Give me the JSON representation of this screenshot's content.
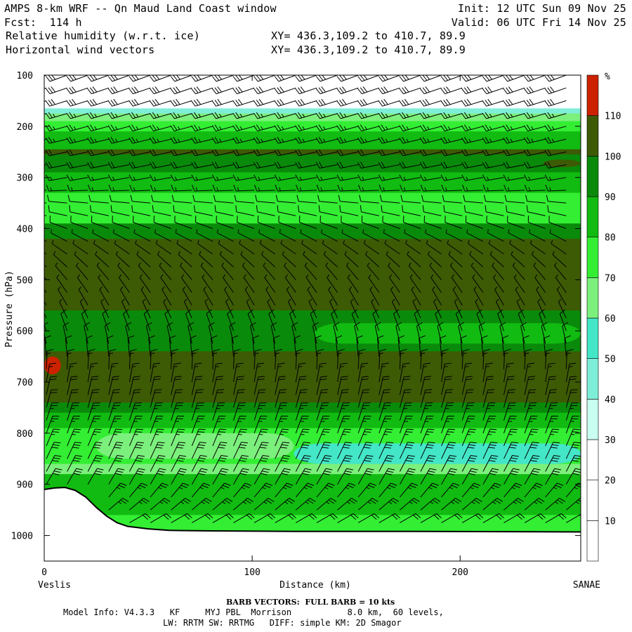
{
  "header": {
    "model_title": "AMPS 8-km WRF -- Qn Maud Land Coast window",
    "init": "Init: 12 UTC Sun 09 Nov 25",
    "forecast": "Fcst:  114 h",
    "valid": "Valid: 06 UTC Fri 14 Nov 25",
    "field1": "Relative humidity (w.r.t. ice)",
    "field1_xy": "XY= 436.3,109.2 to 410.7, 89.9",
    "field2": "Horizontal wind vectors",
    "field2_xy": "XY= 436.3,109.2 to 410.7, 89.9"
  },
  "footer": {
    "barb_note": "BARB VECTORS:  FULL BARB = 10 kts",
    "model_info_1": "Model Info: V4.3.3   KF     MYJ PBL  Morrison           8.0 km,  60 levels,",
    "model_info_2": "LW: RRTM SW: RRTMG   DIFF: simple KM: 2D Smagor"
  },
  "chart_data": {
    "type": "heatmap",
    "title": "Relative humidity (w.r.t. ice)",
    "xlabel": "Distance (km)",
    "ylabel": "Pressure (hPa)",
    "xlim": [
      0,
      258
    ],
    "ylim": [
      1050,
      100
    ],
    "x_ticks": [
      0,
      100,
      200
    ],
    "y_ticks": [
      100,
      200,
      300,
      400,
      500,
      600,
      700,
      800,
      900,
      1000
    ],
    "x_end_labels": {
      "left": "Veslis",
      "right": "SANAE"
    },
    "colorbar": {
      "unit": "%",
      "levels": [
        10,
        20,
        30,
        40,
        50,
        60,
        70,
        80,
        90,
        100,
        110
      ],
      "colors": [
        "#ffffff",
        "#ffffff",
        "#ffffff",
        "#c8fff0",
        "#7feed8",
        "#44e6c8",
        "#7cf07c",
        "#33ee33",
        "#11bb11",
        "#0a8a0a",
        "#3d5a05",
        "#cc2200"
      ]
    },
    "terrain_surface_hPa": [
      [
        0,
        910
      ],
      [
        5,
        907
      ],
      [
        10,
        906
      ],
      [
        15,
        912
      ],
      [
        20,
        925
      ],
      [
        25,
        945
      ],
      [
        30,
        962
      ],
      [
        35,
        975
      ],
      [
        40,
        982
      ],
      [
        50,
        987
      ],
      [
        60,
        990
      ],
      [
        80,
        991
      ],
      [
        120,
        992
      ],
      [
        180,
        992
      ],
      [
        258,
        993
      ]
    ],
    "rh_bands": [
      {
        "p_top": 100,
        "p_bottom": 165,
        "rh_pct": 20
      },
      {
        "p_top": 165,
        "p_bottom": 175,
        "rh_pct": 45
      },
      {
        "p_top": 175,
        "p_bottom": 190,
        "rh_pct": 65
      },
      {
        "p_top": 190,
        "p_bottom": 210,
        "rh_pct": 75
      },
      {
        "p_top": 210,
        "p_bottom": 245,
        "rh_pct": 85
      },
      {
        "p_top": 245,
        "p_bottom": 255,
        "rh_pct": 100
      },
      {
        "p_top": 255,
        "p_bottom": 290,
        "rh_pct": 95
      },
      {
        "p_top": 290,
        "p_bottom": 330,
        "rh_pct": 85
      },
      {
        "p_top": 330,
        "p_bottom": 390,
        "rh_pct": 75
      },
      {
        "p_top": 390,
        "p_bottom": 420,
        "rh_pct": 90
      },
      {
        "p_top": 420,
        "p_bottom": 560,
        "rh_pct": 105
      },
      {
        "p_top": 560,
        "p_bottom": 640,
        "rh_pct": 90
      },
      {
        "p_top": 640,
        "p_bottom": 740,
        "rh_pct": 105
      },
      {
        "p_top": 740,
        "p_bottom": 760,
        "rh_pct": 92
      },
      {
        "p_top": 760,
        "p_bottom": 790,
        "rh_pct": 80
      },
      {
        "p_top": 790,
        "p_bottom": 860,
        "rh_pct": 72
      },
      {
        "p_top": 860,
        "p_bottom": 880,
        "rh_pct": 65
      },
      {
        "p_top": 880,
        "p_bottom": 920,
        "rh_pct": 80
      },
      {
        "p_top": 920,
        "p_bottom": 960,
        "rh_pct": 88
      },
      {
        "p_top": 960,
        "p_bottom": 995,
        "rh_pct": 78
      }
    ],
    "rh_features": [
      {
        "x0": 130,
        "x1": 258,
        "p_top": 585,
        "p_bottom": 625,
        "rh_pct": 80
      },
      {
        "x0": 0,
        "x1": 40,
        "p_top": 350,
        "p_bottom": 370,
        "rh_pct": 70
      },
      {
        "x0": 170,
        "x1": 258,
        "p_top": 345,
        "p_bottom": 375,
        "rh_pct": 72
      },
      {
        "x0": 120,
        "x1": 258,
        "p_top": 820,
        "p_bottom": 860,
        "rh_pct": 55
      },
      {
        "x0": 25,
        "x1": 120,
        "p_top": 800,
        "p_bottom": 850,
        "rh_pct": 60
      },
      {
        "x0": 0,
        "x1": 8,
        "p_top": 650,
        "p_bottom": 685,
        "rh_pct": 115
      },
      {
        "x0": 240,
        "x1": 258,
        "p_top": 265,
        "p_bottom": 280,
        "rh_pct": 105
      }
    ],
    "wind_barbs": {
      "x_km": [
        0,
        10,
        20,
        30,
        40,
        50,
        60,
        70,
        80,
        90,
        100,
        110,
        120,
        130,
        140,
        150,
        160,
        170,
        180,
        190,
        200,
        210,
        220,
        230,
        240,
        250
      ],
      "levels_hPa": [
        100,
        125,
        150,
        175,
        200,
        225,
        250,
        275,
        300,
        325,
        350,
        375,
        400,
        425,
        450,
        475,
        500,
        525,
        550,
        575,
        600,
        625,
        650,
        675,
        700,
        725,
        750,
        775,
        800,
        825,
        850,
        875,
        900,
        925,
        950,
        975
      ],
      "profile": [
        {
          "p": 100,
          "dir_deg": 250,
          "kts": 30
        },
        {
          "p": 200,
          "dir_deg": 255,
          "kts": 25
        },
        {
          "p": 300,
          "dir_deg": 260,
          "kts": 15
        },
        {
          "p": 400,
          "dir_deg": 290,
          "kts": 8
        },
        {
          "p": 500,
          "dir_deg": 320,
          "kts": 5
        },
        {
          "p": 600,
          "dir_deg": 340,
          "kts": 8
        },
        {
          "p": 700,
          "dir_deg": 10,
          "kts": 15
        },
        {
          "p": 800,
          "dir_deg": 20,
          "kts": 25
        },
        {
          "p": 900,
          "dir_deg": 30,
          "kts": 30
        },
        {
          "p": 975,
          "dir_deg": 60,
          "kts": 20
        }
      ]
    }
  }
}
